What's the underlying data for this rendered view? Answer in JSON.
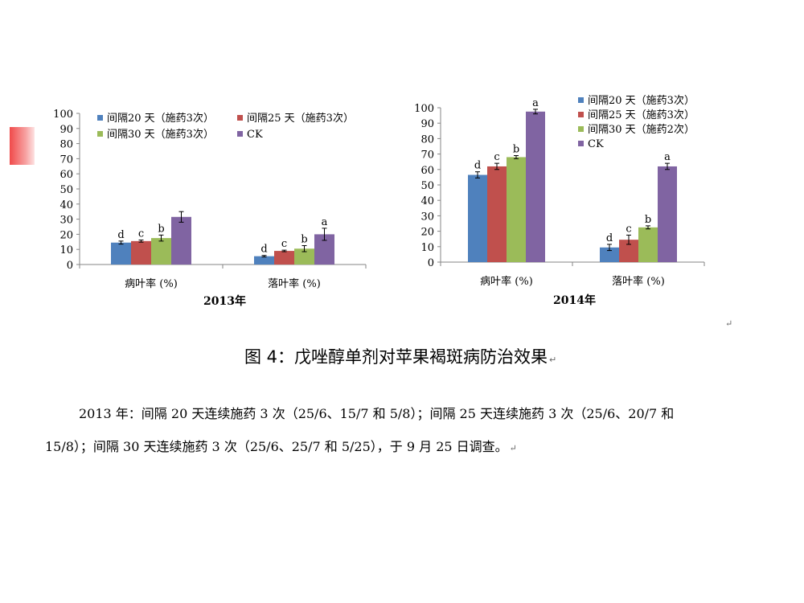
{
  "legend_2013": [
    "间隔20 天（施药3次）",
    "间隔25 天（施药3次）",
    "间隔30 天（施药3次）",
    "CK"
  ],
  "legend_2014": [
    "间隔20 天（施药3次）",
    "间隔25 天（施药3次）",
    "间隔30 天（施药2次）",
    "CK"
  ],
  "colors": [
    "#4f81bd",
    "#c0504d",
    "#9bbb59",
    "#8064a2"
  ],
  "caption": "图 4：戊唑醇单剂对苹果褐斑病防治效果",
  "return_mark": "↵",
  "note_line1": "2013 年：间隔 20 天连续施药 3 次（25/6、15/7 和 5/8）；间隔 25 天连续施药 3 次（25/6、20/7 和",
  "note_line2": "15/8）；间隔 30 天连续施药 3 次（25/6、25/7 和 5/25），于 9 月 25 日调查。",
  "chart_data": [
    {
      "type": "bar",
      "title": "2013年",
      "categories": [
        "病叶率 (%)",
        "落叶率 (%)"
      ],
      "ylim": [
        0,
        100
      ],
      "yticks": [
        0,
        10,
        20,
        30,
        40,
        50,
        60,
        70,
        80,
        90,
        100
      ],
      "grid": false,
      "legend": "top",
      "series": [
        {
          "name": "间隔20 天（施药3次）",
          "values": [
            14.5,
            5.5
          ],
          "errors": [
            1.0,
            0.5
          ],
          "labels": [
            "d",
            "d"
          ]
        },
        {
          "name": "间隔25 天（施药3次）",
          "values": [
            15.5,
            9.0
          ],
          "errors": [
            0.7,
            0.5
          ],
          "labels": [
            "c",
            "c"
          ]
        },
        {
          "name": "间隔30 天（施药3次）",
          "values": [
            17.5,
            10.5
          ],
          "errors": [
            2.0,
            2.0
          ],
          "labels": [
            "b",
            "b"
          ]
        },
        {
          "name": "CK",
          "values": [
            31.5,
            20.0
          ],
          "errors": [
            3.5,
            4.0
          ],
          "labels": [
            "",
            "a"
          ]
        }
      ]
    },
    {
      "type": "bar",
      "title": "2014年",
      "categories": [
        "病叶率 (%)",
        "落叶率 (%)"
      ],
      "ylim": [
        0,
        100
      ],
      "yticks": [
        0,
        10,
        20,
        30,
        40,
        50,
        60,
        70,
        80,
        90,
        100
      ],
      "grid": false,
      "legend": "top-right",
      "series": [
        {
          "name": "间隔20 天（施药3次）",
          "values": [
            56.5,
            9.5
          ],
          "errors": [
            2.0,
            2.0
          ],
          "labels": [
            "d",
            "d"
          ]
        },
        {
          "name": "间隔25 天（施药3次）",
          "values": [
            62.0,
            14.5
          ],
          "errors": [
            2.0,
            3.0
          ],
          "labels": [
            "c",
            "c"
          ]
        },
        {
          "name": "间隔30 天（施药2次）",
          "values": [
            68.0,
            22.5
          ],
          "errors": [
            1.0,
            1.0
          ],
          "labels": [
            "b",
            "b"
          ]
        },
        {
          "name": "CK",
          "values": [
            97.5,
            62.0
          ],
          "errors": [
            1.5,
            2.0
          ],
          "labels": [
            "a",
            "a"
          ]
        }
      ]
    }
  ]
}
